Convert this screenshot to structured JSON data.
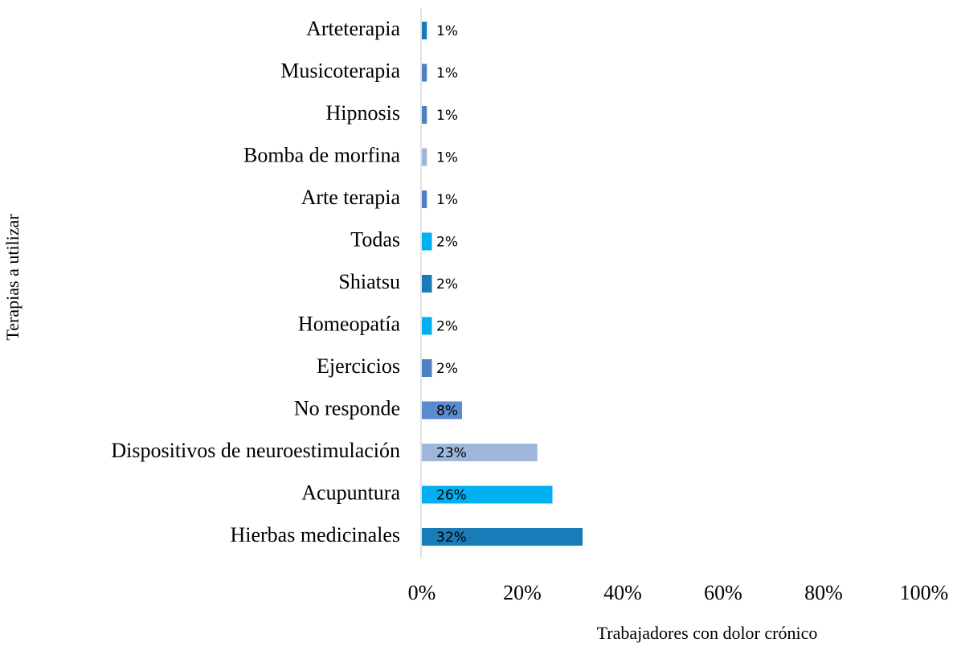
{
  "chart_data": {
    "type": "barh",
    "categories": [
      "Arteterapia",
      "Musicoterapia",
      "Hipnosis",
      "Bomba de morfina",
      "Arte terapia",
      "Todas",
      "Shiatsu",
      "Homeopatía",
      "Ejercicios",
      "No responde",
      "Dispositivos de neuroestimulación",
      "Acupuntura",
      "Hierbas medicinales"
    ],
    "values": [
      1,
      1,
      1,
      1,
      1,
      2,
      2,
      2,
      2,
      8,
      23,
      26,
      32
    ],
    "value_labels": [
      "1%",
      "1%",
      "1%",
      "1%",
      "1%",
      "2%",
      "2%",
      "2%",
      "2%",
      "8%",
      "23%",
      "26%",
      "32%"
    ],
    "colors": [
      "#1a7bb9",
      "#4e81c4",
      "#4e81c4",
      "#9db6da",
      "#4e81c4",
      "#00b0f0",
      "#1a7bb9",
      "#00b0f0",
      "#4e81c4",
      "#5a8ad0",
      "#9db6da",
      "#00b0f0",
      "#1a7bb9"
    ],
    "xlim": [
      0,
      100
    ],
    "xticks": [
      {
        "value": 0,
        "label": "0%"
      },
      {
        "value": 20,
        "label": "20%"
      },
      {
        "value": 40,
        "label": "40%"
      },
      {
        "value": 60,
        "label": "60%"
      },
      {
        "value": 80,
        "label": "80%"
      },
      {
        "value": 100,
        "label": "100%"
      }
    ],
    "xlabel": "Trabajadores con dolor crónico",
    "ylabel": "Terapias a utilizar",
    "grid": false
  }
}
